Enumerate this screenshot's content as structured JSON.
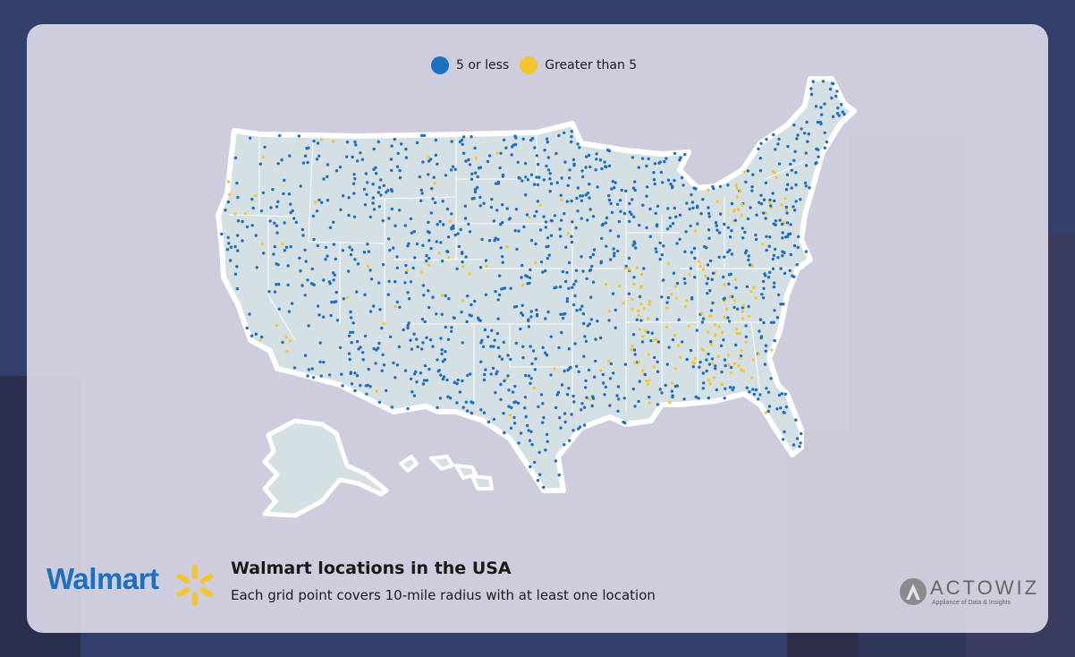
{
  "legend": {
    "items": [
      {
        "label": "5 or less",
        "color": "#1f6fbf"
      },
      {
        "label": "Greater than 5",
        "color": "#f5c530"
      }
    ]
  },
  "map": {
    "land_color": "#d5e0e4",
    "border_color": "#ffffff",
    "dot_colors": {
      "low": "#1f6fbf",
      "high": "#f5c530"
    }
  },
  "footer": {
    "brand": "Walmart",
    "title": "Walmart locations in the USA",
    "subtitle": "Each grid point covers 10-mile radius with at least one location"
  },
  "watermark": {
    "name": "ACTOWIZ",
    "tagline": "Appliance of Data & Insights"
  }
}
